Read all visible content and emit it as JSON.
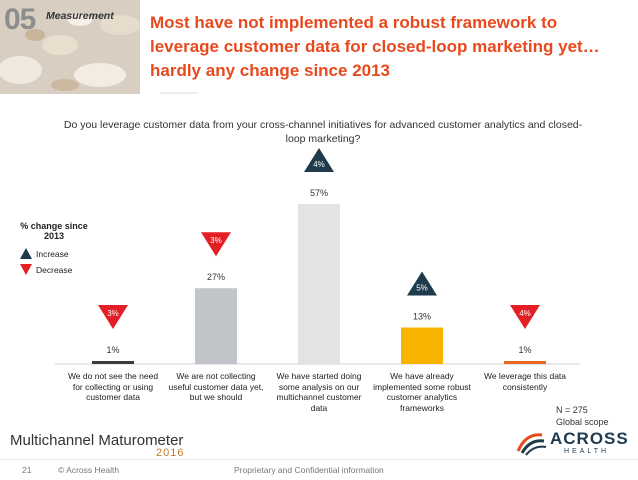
{
  "header": {
    "section_number": "05",
    "section_label": "Measurement",
    "title": "Most have not implemented a robust framework to leverage customer data for closed-loop marketing yet… hardly any change since 2013"
  },
  "question": "Do you leverage customer data from your cross-channel initiatives for advanced customer analytics and closed-loop marketing?",
  "legend": {
    "title": "% change since 2013",
    "increase": "Increase",
    "decrease": "Decrease"
  },
  "colors": {
    "accent": "#e8491d",
    "increase": "#1f3a4d",
    "decrease": "#e31e24"
  },
  "chart_data": {
    "type": "bar",
    "categories": [
      "We do not see the need for collecting or using customer data",
      "We are not collecting useful customer data yet, but we should",
      "We have started doing some analysis on our multichannel customer data",
      "We have already implemented some robust customer analytics frameworks",
      "We leverage this data consistently"
    ],
    "values": [
      1,
      27,
      57,
      13,
      1
    ],
    "value_labels": [
      "1%",
      "27%",
      "57%",
      "13%",
      "1%"
    ],
    "bar_colors": [
      "#3c3c3c",
      "#c1c5c9",
      "#e3e3e3",
      "#f8b400",
      "#e8691d"
    ],
    "change_labels": [
      "3%",
      "3%",
      "4%",
      "5%",
      "4%"
    ],
    "change_direction": [
      "decrease",
      "decrease",
      "increase",
      "increase",
      "decrease"
    ],
    "ylim": [
      0,
      57
    ]
  },
  "note": {
    "n": "N = 275",
    "scope": "Global scope"
  },
  "brand": {
    "name": "Multichannel Maturometer",
    "year": "2016",
    "company": "ACROSS",
    "company_sub": "HEALTH"
  },
  "footer": {
    "page": "21",
    "copyright": "© Across Health",
    "confidential": "Proprietary and Confidential information"
  }
}
